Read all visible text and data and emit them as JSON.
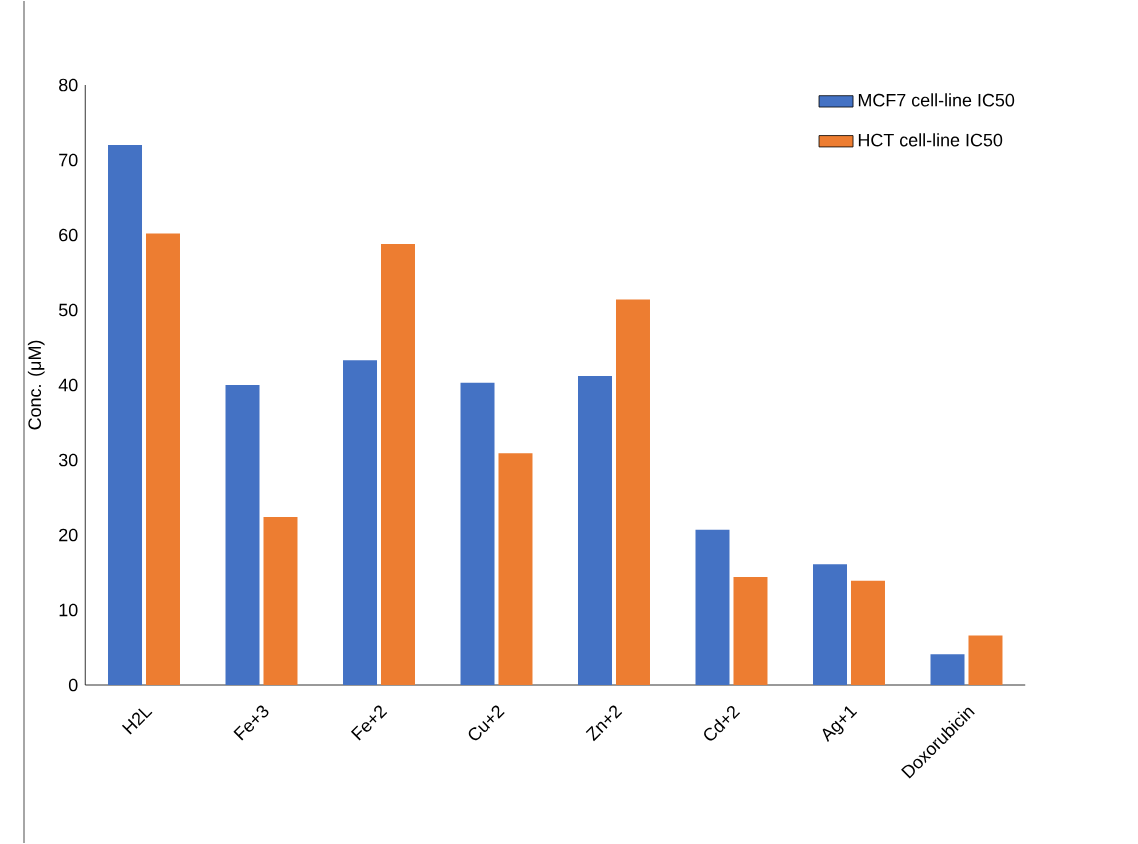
{
  "chart_data": {
    "type": "bar",
    "ylabel": "Conc. (μM)",
    "categories": [
      "H2L",
      "Fe+3",
      "Fe+2",
      "Cu+2",
      "Zn+2",
      "Cd+2",
      "Ag+1",
      "Doxorubicin"
    ],
    "series": [
      {
        "name": "MCF7 cell-line IC50",
        "color": "#4472c4",
        "values": [
          72.0,
          40.0,
          43.3,
          40.3,
          41.2,
          20.7,
          16.1,
          4.1
        ]
      },
      {
        "name": "HCT cell-line IC50",
        "color": "#ed7d31",
        "values": [
          60.2,
          22.4,
          58.8,
          30.9,
          51.4,
          14.4,
          13.9,
          6.6
        ]
      }
    ],
    "ylim": [
      0,
      80
    ],
    "yticks": [
      0,
      10,
      20,
      30,
      40,
      50,
      60,
      70,
      80
    ],
    "grid": false,
    "legend": "top right"
  }
}
